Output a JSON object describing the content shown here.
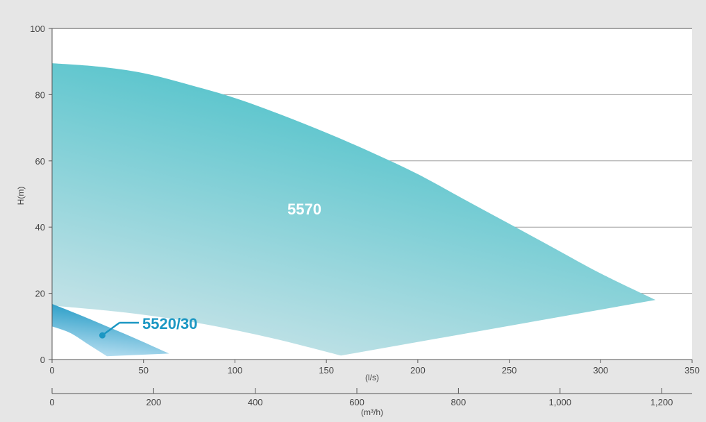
{
  "chart_data": {
    "type": "area",
    "ylabel": "H(m)",
    "xlabel_primary": "(l/s)",
    "xlabel_secondary": "(m³/h)",
    "xlim_ls": [
      0,
      350
    ],
    "xlim_m3h": [
      0,
      1260
    ],
    "ylim": [
      0,
      100
    ],
    "y_ticks": [
      "0",
      "20",
      "40",
      "60",
      "80",
      "100"
    ],
    "y_tick_values": [
      0,
      20,
      40,
      60,
      80,
      100
    ],
    "x_ticks_ls": [
      "0",
      "50",
      "100",
      "150",
      "200",
      "250",
      "300",
      "350"
    ],
    "x_tick_values_ls": [
      0,
      50,
      100,
      150,
      200,
      250,
      300,
      350
    ],
    "x_ticks_m3h": [
      "0",
      "200",
      "400",
      "600",
      "800",
      "1,000",
      "1,200"
    ],
    "x_tick_values_m3h": [
      0,
      200,
      400,
      600,
      800,
      1000,
      1200
    ],
    "grid": true,
    "series": [
      {
        "name": "5570",
        "color": "#5bc5cd",
        "light_color": "#bfe1e6",
        "label_x": 138,
        "label_y": 45,
        "top_curve": [
          [
            0,
            89.5
          ],
          [
            25,
            88.5
          ],
          [
            50,
            86.5
          ],
          [
            75,
            83
          ],
          [
            100,
            79
          ],
          [
            125,
            74
          ],
          [
            150,
            68.5
          ],
          [
            175,
            62.5
          ],
          [
            200,
            56
          ],
          [
            225,
            48.5
          ],
          [
            250,
            41
          ],
          [
            275,
            33.5
          ],
          [
            300,
            26
          ],
          [
            330,
            18
          ]
        ],
        "bottom_curve": [
          [
            330,
            18
          ],
          [
            158,
            1.2
          ],
          [
            120,
            6.5
          ],
          [
            80,
            11
          ],
          [
            40,
            14.2
          ],
          [
            0,
            16.3
          ]
        ]
      },
      {
        "name": "5520/30",
        "color": "#1b97c3",
        "light_color": "#b9dff1",
        "top_curve": [
          [
            0,
            16.8
          ],
          [
            15,
            13.5
          ],
          [
            30,
            10
          ],
          [
            45,
            6.5
          ],
          [
            64,
            1.8
          ]
        ],
        "bottom_curve": [
          [
            64,
            1.8
          ],
          [
            30,
            1.0
          ],
          [
            20,
            4.5
          ],
          [
            10,
            8.0
          ],
          [
            0,
            10.0
          ]
        ],
        "label_anchor": [
          27.5,
          7.3
        ]
      }
    ]
  }
}
